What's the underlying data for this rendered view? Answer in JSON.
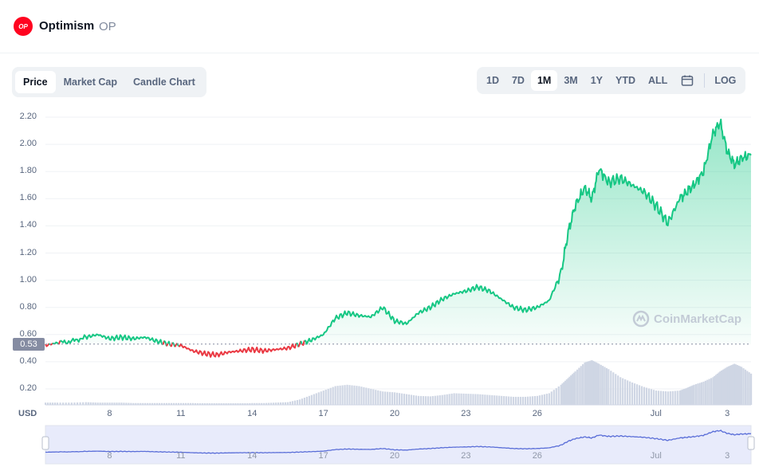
{
  "header": {
    "logo_text": "OP",
    "name": "Optimism",
    "symbol": "OP"
  },
  "tabs": [
    {
      "label": "Price",
      "active": true
    },
    {
      "label": "Market Cap",
      "active": false
    },
    {
      "label": "Candle Chart",
      "active": false
    }
  ],
  "ranges": [
    {
      "label": "1D",
      "active": false
    },
    {
      "label": "7D",
      "active": false
    },
    {
      "label": "1M",
      "active": true
    },
    {
      "label": "3M",
      "active": false
    },
    {
      "label": "1Y",
      "active": false
    },
    {
      "label": "YTD",
      "active": false
    },
    {
      "label": "ALL",
      "active": false
    }
  ],
  "calendar_icon": "calendar-icon",
  "log_label": "LOG",
  "watermark_text": "CoinMarketCap",
  "currency_label": "USD",
  "colors": {
    "up": "#16c784",
    "down": "#ea3943",
    "volume": "#cfd6e4",
    "navigator_line": "#5a6ed8",
    "navigator_fill": "#e8ebfb"
  },
  "chart_data": {
    "type": "line",
    "title": "",
    "ylabel": "USD",
    "reference_price": 0.53,
    "reference_label": "0.53",
    "y_ticks": [
      "2.20",
      "2.00",
      "1.80",
      "1.60",
      "1.40",
      "1.20",
      "1.00",
      "0.80",
      "0.60",
      "0.40",
      "0.20"
    ],
    "y_tick_values": [
      2.2,
      2.0,
      1.8,
      1.6,
      1.4,
      1.2,
      1.0,
      0.8,
      0.6,
      0.4,
      0.2
    ],
    "ylim": [
      0.0,
      2.25
    ],
    "x_ticks": [
      "8",
      "11",
      "14",
      "17",
      "20",
      "23",
      "26",
      "Jul",
      "3"
    ],
    "x_tick_days": [
      8,
      11,
      14,
      17,
      20,
      23,
      26,
      31,
      34
    ],
    "xlim": [
      5.3,
      35.0
    ],
    "x_days": [
      5.3,
      5.8,
      6.4,
      7.0,
      7.5,
      8.0,
      8.5,
      9.0,
      9.5,
      10.0,
      10.5,
      11.0,
      11.5,
      12.0,
      12.5,
      13.0,
      13.5,
      14.0,
      14.5,
      15.0,
      15.5,
      16.0,
      16.5,
      17.0,
      17.5,
      18.0,
      18.5,
      19.0,
      19.5,
      20.0,
      20.5,
      21.0,
      21.5,
      22.0,
      22.5,
      23.0,
      23.5,
      24.0,
      24.5,
      25.0,
      25.5,
      26.0,
      26.5,
      27.0,
      27.3,
      27.6,
      28.0,
      28.3,
      28.6,
      29.0,
      29.5,
      30.0,
      30.5,
      31.0,
      31.5,
      32.0,
      32.3,
      32.6,
      33.0,
      33.4,
      33.7,
      34.0,
      34.3,
      34.6,
      35.0
    ],
    "price": [
      0.52,
      0.54,
      0.55,
      0.58,
      0.6,
      0.57,
      0.58,
      0.57,
      0.58,
      0.55,
      0.53,
      0.52,
      0.48,
      0.46,
      0.45,
      0.47,
      0.48,
      0.49,
      0.48,
      0.49,
      0.5,
      0.53,
      0.56,
      0.6,
      0.72,
      0.76,
      0.74,
      0.73,
      0.8,
      0.7,
      0.68,
      0.76,
      0.8,
      0.86,
      0.9,
      0.92,
      0.95,
      0.92,
      0.86,
      0.8,
      0.78,
      0.8,
      0.85,
      1.05,
      1.35,
      1.55,
      1.68,
      1.6,
      1.82,
      1.72,
      1.75,
      1.7,
      1.65,
      1.55,
      1.42,
      1.6,
      1.65,
      1.7,
      1.8,
      2.08,
      2.16,
      1.95,
      1.85,
      1.9,
      1.92
    ],
    "volume": [
      0.05,
      0.05,
      0.05,
      0.06,
      0.05,
      0.05,
      0.05,
      0.04,
      0.04,
      0.04,
      0.04,
      0.04,
      0.04,
      0.03,
      0.03,
      0.03,
      0.03,
      0.04,
      0.04,
      0.05,
      0.06,
      0.12,
      0.22,
      0.32,
      0.42,
      0.45,
      0.42,
      0.36,
      0.3,
      0.28,
      0.24,
      0.2,
      0.19,
      0.22,
      0.26,
      0.25,
      0.24,
      0.22,
      0.2,
      0.18,
      0.18,
      0.2,
      0.26,
      0.45,
      0.6,
      0.75,
      0.95,
      1.0,
      0.92,
      0.8,
      0.62,
      0.5,
      0.4,
      0.32,
      0.3,
      0.32,
      0.38,
      0.45,
      0.52,
      0.62,
      0.75,
      0.85,
      0.92,
      0.85,
      0.7
    ]
  }
}
